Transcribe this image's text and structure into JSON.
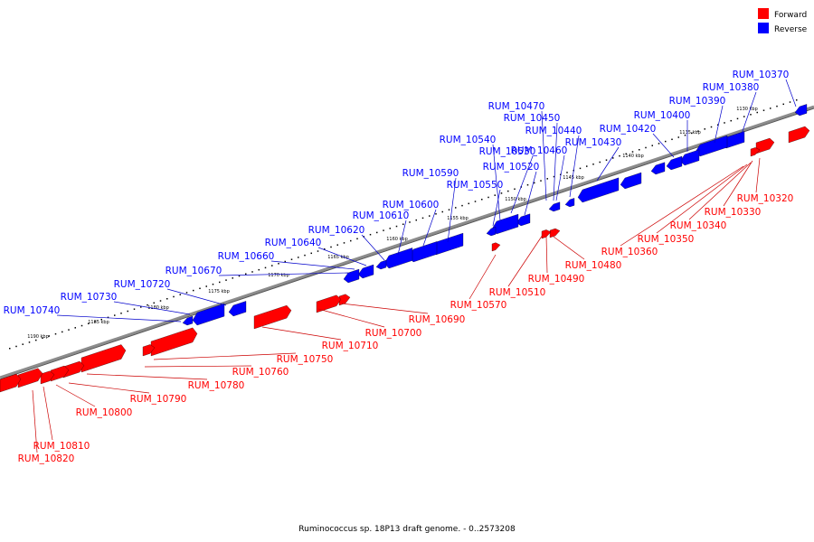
{
  "caption": "Ruminococcus sp. 18P13 draft genome. - 0..2573208",
  "legend": [
    {
      "label": "Forward",
      "color": "#ff0000"
    },
    {
      "label": "Reverse",
      "color": "#0000ff"
    }
  ],
  "colors": {
    "forward": "#ff0000",
    "reverse": "#0000ff",
    "backbone": "#8c8c8c",
    "forward_line": "#cc0000",
    "reverse_line": "#0000cc"
  },
  "scale_ticks": [
    "1130 kbp",
    "1135 kbp",
    "1140 kbp",
    "1145 kbp",
    "1150 kbp",
    "1155 kbp",
    "1160 kbp",
    "1165 kbp",
    "1170 kbp",
    "1175 kbp",
    "1180 kbp",
    "1185 kbp",
    "1190 kbp"
  ],
  "reverse_genes": [
    "RUM_10370",
    "RUM_10380",
    "RUM_10390",
    "RUM_10400",
    "RUM_10420",
    "RUM_10430",
    "RUM_10440",
    "RUM_10450",
    "RUM_10460",
    "RUM_10470",
    "RUM_10520",
    "RUM_10530",
    "RUM_10540",
    "RUM_10550",
    "RUM_10590",
    "RUM_10600",
    "RUM_10610",
    "RUM_10620",
    "RUM_10640",
    "RUM_10660",
    "RUM_10670",
    "RUM_10720",
    "RUM_10730",
    "RUM_10740"
  ],
  "forward_genes": [
    "RUM_10320",
    "RUM_10330",
    "RUM_10340",
    "RUM_10350",
    "RUM_10360",
    "RUM_10480",
    "RUM_10490",
    "RUM_10510",
    "RUM_10570",
    "RUM_10690",
    "RUM_10700",
    "RUM_10710",
    "RUM_10750",
    "RUM_10760",
    "RUM_10780",
    "RUM_10790",
    "RUM_10800",
    "RUM_10810",
    "RUM_10820"
  ]
}
